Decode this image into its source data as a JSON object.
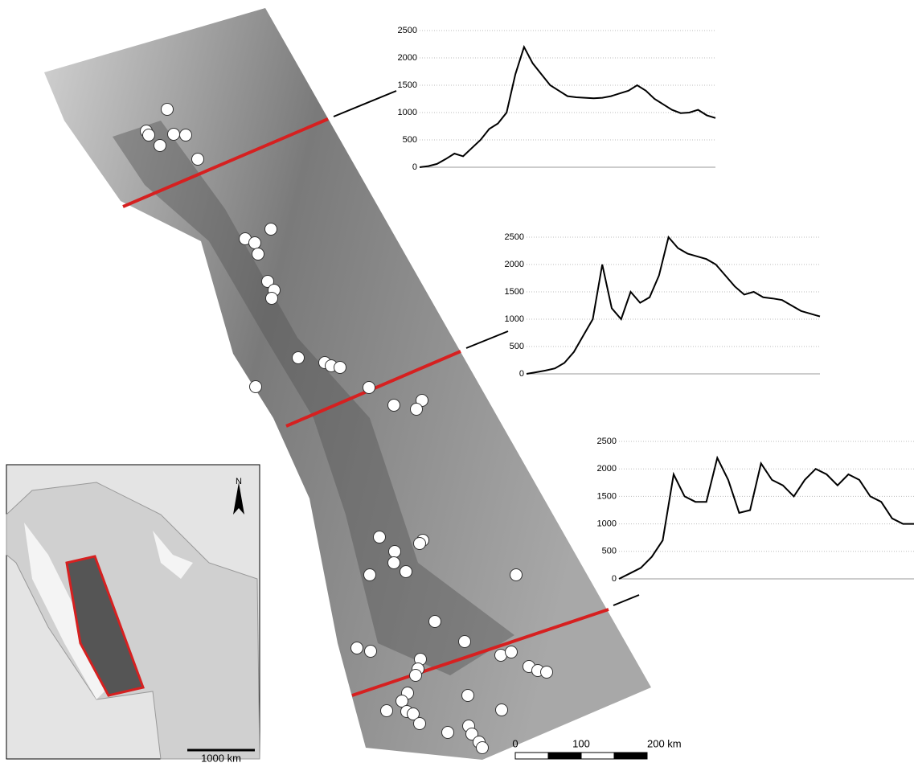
{
  "chart_data": [
    {
      "type": "line",
      "ylim": [
        0,
        2500
      ],
      "yticks": [
        0,
        500,
        1000,
        1500,
        2000,
        2500
      ],
      "grid": true,
      "color": "#000000",
      "values": [
        0,
        20,
        60,
        150,
        250,
        200,
        350,
        500,
        700,
        800,
        1000,
        1700,
        2200,
        1900,
        1700,
        1500,
        1400,
        1300,
        1280,
        1270,
        1260,
        1270,
        1300,
        1350,
        1400,
        1500,
        1400,
        1250,
        1150,
        1050,
        990,
        1000,
        1050,
        950,
        900
      ]
    },
    {
      "type": "line",
      "ylim": [
        0,
        2500
      ],
      "yticks": [
        0,
        500,
        1000,
        1500,
        2000,
        2500
      ],
      "grid": true,
      "color": "#000000",
      "values": [
        0,
        30,
        60,
        100,
        200,
        400,
        700,
        1000,
        2000,
        1200,
        1000,
        1500,
        1300,
        1400,
        1800,
        2500,
        2300,
        2200,
        2150,
        2100,
        2000,
        1800,
        1600,
        1450,
        1500,
        1400,
        1380,
        1350,
        1250,
        1150,
        1100,
        1050
      ]
    },
    {
      "type": "line",
      "ylim": [
        0,
        2500
      ],
      "yticks": [
        0,
        500,
        1000,
        1500,
        2000,
        2500
      ],
      "grid": true,
      "color": "#000000",
      "values": [
        0,
        100,
        200,
        400,
        700,
        1900,
        1500,
        1400,
        1400,
        2200,
        1800,
        1200,
        1250,
        2100,
        1800,
        1700,
        1500,
        1800,
        2000,
        1900,
        1700,
        1900,
        1800,
        1500,
        1400,
        1100,
        1000,
        1000
      ]
    }
  ],
  "map": {
    "scale_labels": [
      "0",
      "100",
      "200 km"
    ],
    "inset": {
      "north_label": "N",
      "scale_label": "1000 km"
    }
  }
}
